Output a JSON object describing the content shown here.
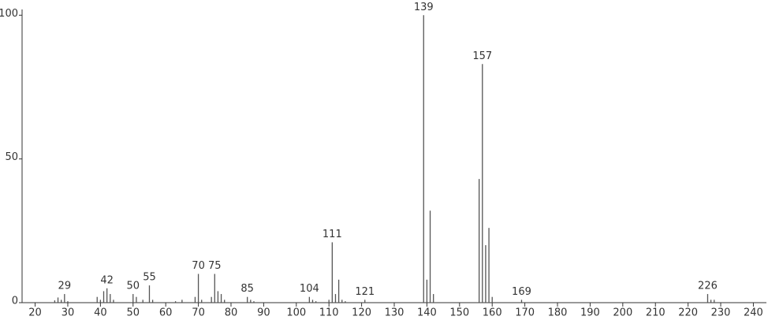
{
  "chart_data": {
    "type": "bar",
    "x": [
      26,
      27,
      28,
      29,
      30,
      39,
      40,
      41,
      42,
      43,
      44,
      50,
      51,
      53,
      55,
      56,
      63,
      65,
      69,
      70,
      71,
      74,
      75,
      76,
      77,
      78,
      85,
      86,
      87,
      104,
      105,
      106,
      110,
      111,
      112,
      113,
      114,
      115,
      121,
      139,
      140,
      141,
      142,
      156,
      157,
      158,
      159,
      160,
      169,
      226,
      227,
      228
    ],
    "values": [
      0.8,
      1.8,
      1,
      3,
      0.5,
      2,
      1,
      4,
      5,
      3,
      1,
      3,
      2,
      1,
      6,
      1,
      0.5,
      1,
      2,
      10,
      1,
      2,
      10,
      4,
      3,
      1,
      2,
      1,
      0.5,
      2,
      1,
      0.5,
      1,
      21,
      3,
      8,
      1,
      0.5,
      1,
      100,
      8,
      32,
      3,
      43,
      83,
      20,
      26,
      2,
      1,
      3,
      1,
      1
    ],
    "peak_labels": [
      29,
      42,
      50,
      55,
      70,
      75,
      85,
      104,
      111,
      121,
      139,
      157,
      169,
      226
    ],
    "color": "#555555",
    "xlim": [
      16,
      244
    ],
    "ylim": [
      0,
      102
    ],
    "xticks": [
      20,
      30,
      40,
      50,
      60,
      70,
      80,
      90,
      100,
      110,
      120,
      130,
      140,
      150,
      160,
      170,
      180,
      190,
      200,
      210,
      220,
      230,
      240
    ],
    "yticks": [
      0,
      50,
      100
    ]
  }
}
